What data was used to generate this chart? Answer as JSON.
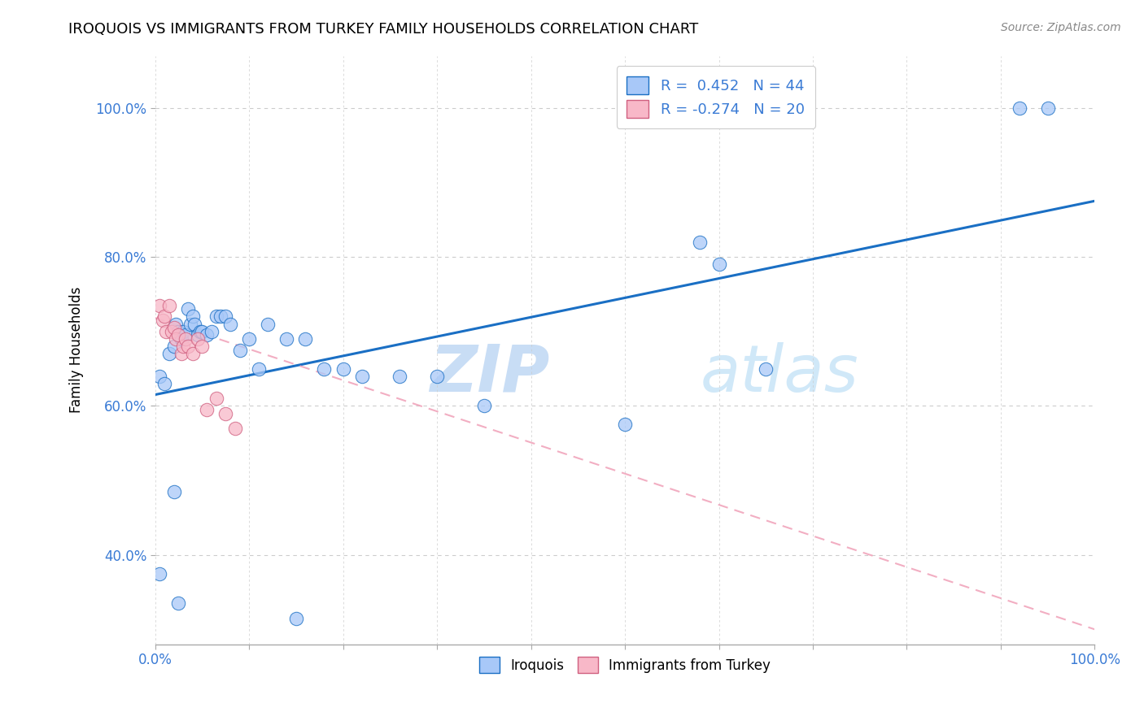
{
  "title": "IROQUOIS VS IMMIGRANTS FROM TURKEY FAMILY HOUSEHOLDS CORRELATION CHART",
  "source": "Source: ZipAtlas.com",
  "ylabel": "Family Households",
  "xlim": [
    0.0,
    1.0
  ],
  "ylim": [
    0.28,
    1.07
  ],
  "yticks": [
    0.4,
    0.6,
    0.8,
    1.0
  ],
  "ytick_labels": [
    "40.0%",
    "60.0%",
    "80.0%",
    "100.0%"
  ],
  "legend_r1": "R =  0.452",
  "legend_n1": "N = 44",
  "legend_r2": "R = -0.274",
  "legend_n2": "N = 20",
  "iroquois_color": "#a8c8f8",
  "turkey_color": "#f8b8c8",
  "trendline1_color": "#1a6fc4",
  "trendline2_color": "#f0a0b8",
  "watermark_zip": "ZIP",
  "watermark_atlas": "atlas",
  "watermark_color": "#c8e0f8",
  "iroquois_points_x": [
    0.005,
    0.01,
    0.015,
    0.02,
    0.022,
    0.025,
    0.028,
    0.03,
    0.032,
    0.035,
    0.038,
    0.04,
    0.042,
    0.045,
    0.048,
    0.05,
    0.055,
    0.06,
    0.065,
    0.07,
    0.075,
    0.08,
    0.09,
    0.1,
    0.11,
    0.12,
    0.14,
    0.16,
    0.18,
    0.2,
    0.22,
    0.26,
    0.3,
    0.35,
    0.5,
    0.58,
    0.6,
    0.65,
    0.92,
    0.95,
    0.005,
    0.02,
    0.025,
    0.15
  ],
  "iroquois_points_y": [
    0.64,
    0.63,
    0.67,
    0.68,
    0.71,
    0.7,
    0.69,
    0.7,
    0.695,
    0.73,
    0.71,
    0.72,
    0.71,
    0.695,
    0.7,
    0.7,
    0.695,
    0.7,
    0.72,
    0.72,
    0.72,
    0.71,
    0.675,
    0.69,
    0.65,
    0.71,
    0.69,
    0.69,
    0.65,
    0.65,
    0.64,
    0.64,
    0.64,
    0.6,
    0.575,
    0.82,
    0.79,
    0.65,
    1.0,
    1.0,
    0.375,
    0.485,
    0.335,
    0.315
  ],
  "turkey_points_x": [
    0.005,
    0.008,
    0.01,
    0.012,
    0.015,
    0.018,
    0.02,
    0.022,
    0.025,
    0.028,
    0.03,
    0.032,
    0.035,
    0.04,
    0.045,
    0.05,
    0.055,
    0.065,
    0.075,
    0.085
  ],
  "turkey_points_y": [
    0.735,
    0.715,
    0.72,
    0.7,
    0.735,
    0.7,
    0.705,
    0.69,
    0.695,
    0.67,
    0.68,
    0.69,
    0.68,
    0.67,
    0.69,
    0.68,
    0.595,
    0.61,
    0.59,
    0.57
  ],
  "trendline1_x": [
    0.0,
    1.0
  ],
  "trendline1_y": [
    0.615,
    0.875
  ],
  "trendline2_x": [
    0.0,
    1.0
  ],
  "trendline2_y": [
    0.718,
    0.3
  ]
}
